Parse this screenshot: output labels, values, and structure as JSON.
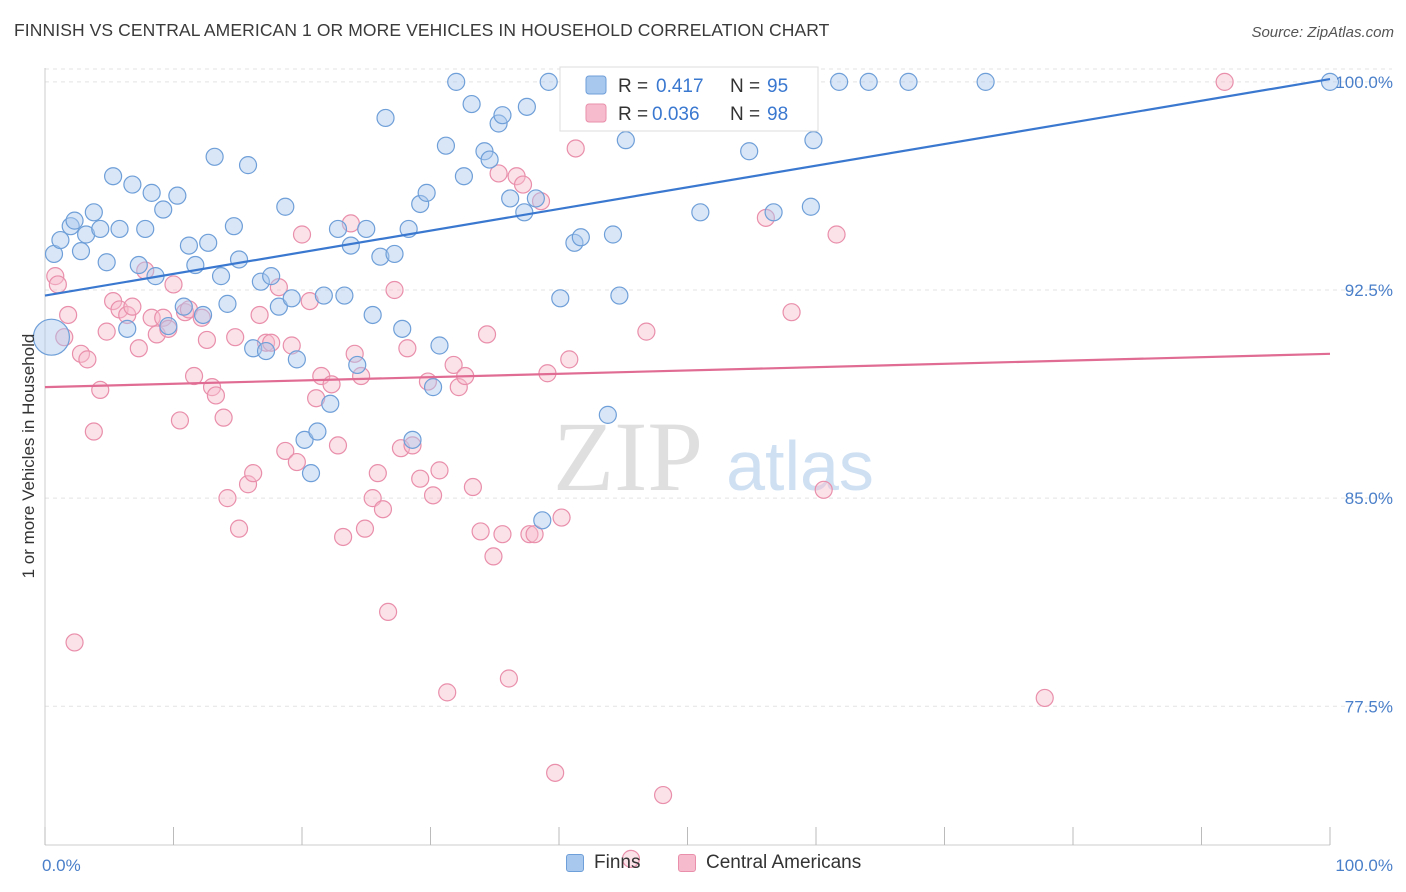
{
  "title": "FINNISH VS CENTRAL AMERICAN 1 OR MORE VEHICLES IN HOUSEHOLD CORRELATION CHART",
  "source": "Source: ZipAtlas.com",
  "watermark": {
    "zip": "ZIP",
    "atlas": "atlas"
  },
  "colors": {
    "finns_fill": "#a9c8ee",
    "finns_stroke": "#6f9fd8",
    "finns_line": "#3a78d0",
    "ca_fill": "#f6bccd",
    "ca_stroke": "#e98fab",
    "ca_line": "#e06b93",
    "tick_label": "#4a7fc9",
    "grid": "#e3e3e3"
  },
  "legend": {
    "finns": {
      "r_label": "R =",
      "r_value": "0.417",
      "n_label": "N =",
      "n_value": "95"
    },
    "ca": {
      "r_label": "R =",
      "r_value": "0.036",
      "n_label": "N =",
      "n_value": "98"
    }
  },
  "bottom_legend": {
    "finns": "Finns",
    "ca": "Central Americans"
  },
  "chart_data": {
    "type": "scatter",
    "title": "FINNISH VS CENTRAL AMERICAN 1 OR MORE VEHICLES IN HOUSEHOLD CORRELATION CHART",
    "xlabel": "",
    "ylabel": "1 or more Vehicles in Household",
    "xlim": [
      0,
      100
    ],
    "ylim": [
      72.5,
      100.5
    ],
    "x_tick_labels": [
      "0.0%",
      "100.0%"
    ],
    "y_ticks": [
      77.5,
      85.0,
      92.5,
      100.0
    ],
    "y_tick_labels": [
      "77.5%",
      "85.0%",
      "92.5%",
      "100.0%"
    ],
    "grid": true,
    "series": [
      {
        "name": "Finns",
        "trend": {
          "x": [
            0,
            100
          ],
          "y": [
            92.3,
            100.1
          ]
        },
        "points": [
          [
            0.5,
            90.8
          ],
          [
            0.7,
            93.8
          ],
          [
            1.2,
            94.3
          ],
          [
            2.0,
            94.8
          ],
          [
            2.3,
            95.0
          ],
          [
            2.8,
            93.9
          ],
          [
            3.2,
            94.5
          ],
          [
            3.8,
            95.3
          ],
          [
            4.3,
            94.7
          ],
          [
            4.8,
            93.5
          ],
          [
            5.3,
            96.6
          ],
          [
            5.8,
            94.7
          ],
          [
            6.4,
            91.1
          ],
          [
            6.8,
            96.3
          ],
          [
            7.3,
            93.4
          ],
          [
            7.8,
            94.7
          ],
          [
            8.3,
            96.0
          ],
          [
            8.6,
            93.0
          ],
          [
            9.2,
            95.4
          ],
          [
            9.6,
            91.2
          ],
          [
            10.3,
            95.9
          ],
          [
            10.8,
            91.9
          ],
          [
            11.2,
            94.1
          ],
          [
            11.7,
            93.4
          ],
          [
            12.3,
            91.6
          ],
          [
            12.7,
            94.2
          ],
          [
            13.2,
            97.3
          ],
          [
            13.7,
            93.0
          ],
          [
            14.2,
            92.0
          ],
          [
            14.7,
            94.8
          ],
          [
            15.1,
            93.6
          ],
          [
            15.8,
            97.0
          ],
          [
            16.2,
            90.4
          ],
          [
            16.8,
            92.8
          ],
          [
            17.2,
            90.3
          ],
          [
            17.6,
            93.0
          ],
          [
            18.2,
            91.9
          ],
          [
            18.7,
            95.5
          ],
          [
            19.2,
            92.2
          ],
          [
            19.6,
            90.0
          ],
          [
            20.2,
            87.1
          ],
          [
            20.7,
            85.9
          ],
          [
            21.2,
            87.4
          ],
          [
            21.7,
            92.3
          ],
          [
            22.2,
            88.4
          ],
          [
            22.8,
            94.7
          ],
          [
            23.3,
            92.3
          ],
          [
            23.8,
            94.1
          ],
          [
            24.3,
            89.8
          ],
          [
            25.0,
            94.7
          ],
          [
            25.5,
            91.6
          ],
          [
            26.1,
            93.7
          ],
          [
            26.5,
            98.7
          ],
          [
            27.2,
            93.8
          ],
          [
            27.8,
            91.1
          ],
          [
            28.3,
            94.7
          ],
          [
            28.6,
            87.1
          ],
          [
            29.2,
            95.6
          ],
          [
            29.7,
            96.0
          ],
          [
            30.2,
            89.0
          ],
          [
            30.7,
            90.5
          ],
          [
            31.2,
            97.7
          ],
          [
            32.0,
            100.0
          ],
          [
            32.6,
            96.6
          ],
          [
            33.2,
            99.2
          ],
          [
            34.2,
            97.5
          ],
          [
            34.6,
            97.2
          ],
          [
            35.3,
            98.5
          ],
          [
            35.6,
            98.8
          ],
          [
            36.2,
            95.8
          ],
          [
            37.3,
            95.3
          ],
          [
            37.5,
            99.1
          ],
          [
            38.2,
            95.8
          ],
          [
            38.7,
            84.2
          ],
          [
            39.2,
            100.0
          ],
          [
            40.1,
            92.2
          ],
          [
            41.2,
            94.2
          ],
          [
            41.7,
            94.4
          ],
          [
            42.8,
            99.6
          ],
          [
            43.8,
            88.0
          ],
          [
            44.2,
            94.5
          ],
          [
            44.7,
            92.3
          ],
          [
            45.2,
            97.9
          ],
          [
            50.2,
            100.0
          ],
          [
            51.0,
            95.3
          ],
          [
            54.8,
            97.5
          ],
          [
            56.7,
            95.3
          ],
          [
            58.7,
            100.0
          ],
          [
            59.6,
            95.5
          ],
          [
            59.8,
            97.9
          ],
          [
            61.8,
            100.0
          ],
          [
            64.1,
            100.0
          ],
          [
            67.2,
            100.0
          ],
          [
            73.2,
            100.0
          ],
          [
            100.0,
            100.0
          ]
        ]
      },
      {
        "name": "Central Americans",
        "trend": {
          "x": [
            0,
            100
          ],
          "y": [
            89.0,
            90.2
          ]
        },
        "points": [
          [
            0.8,
            93.0
          ],
          [
            1.0,
            92.7
          ],
          [
            1.5,
            90.8
          ],
          [
            1.8,
            91.6
          ],
          [
            2.3,
            79.8
          ],
          [
            2.8,
            90.2
          ],
          [
            3.3,
            90.0
          ],
          [
            3.8,
            87.4
          ],
          [
            4.3,
            88.9
          ],
          [
            4.8,
            91.0
          ],
          [
            5.3,
            92.1
          ],
          [
            5.8,
            91.8
          ],
          [
            6.4,
            91.6
          ],
          [
            6.8,
            91.9
          ],
          [
            7.3,
            90.4
          ],
          [
            7.8,
            93.2
          ],
          [
            8.3,
            91.5
          ],
          [
            8.7,
            90.9
          ],
          [
            9.2,
            91.5
          ],
          [
            9.6,
            91.1
          ],
          [
            10.0,
            92.7
          ],
          [
            10.5,
            87.8
          ],
          [
            10.9,
            91.7
          ],
          [
            11.2,
            91.8
          ],
          [
            11.6,
            89.4
          ],
          [
            12.2,
            91.5
          ],
          [
            12.6,
            90.7
          ],
          [
            13.0,
            89.0
          ],
          [
            13.3,
            88.7
          ],
          [
            13.9,
            87.9
          ],
          [
            14.2,
            85.0
          ],
          [
            14.8,
            90.8
          ],
          [
            15.1,
            83.9
          ],
          [
            15.8,
            85.5
          ],
          [
            16.2,
            85.9
          ],
          [
            16.7,
            91.6
          ],
          [
            17.2,
            90.6
          ],
          [
            17.6,
            90.6
          ],
          [
            18.2,
            92.6
          ],
          [
            18.7,
            86.7
          ],
          [
            19.2,
            90.5
          ],
          [
            19.6,
            86.3
          ],
          [
            20.0,
            94.5
          ],
          [
            20.6,
            92.1
          ],
          [
            21.1,
            88.6
          ],
          [
            21.5,
            89.4
          ],
          [
            22.3,
            89.1
          ],
          [
            22.8,
            86.9
          ],
          [
            23.2,
            83.6
          ],
          [
            23.8,
            94.9
          ],
          [
            24.1,
            90.2
          ],
          [
            24.6,
            89.4
          ],
          [
            24.9,
            83.9
          ],
          [
            25.5,
            85.0
          ],
          [
            25.9,
            85.9
          ],
          [
            26.3,
            84.6
          ],
          [
            26.7,
            80.9
          ],
          [
            27.2,
            92.5
          ],
          [
            27.7,
            86.8
          ],
          [
            28.2,
            90.4
          ],
          [
            28.6,
            86.9
          ],
          [
            29.2,
            85.7
          ],
          [
            29.8,
            89.2
          ],
          [
            30.2,
            85.1
          ],
          [
            30.7,
            86.0
          ],
          [
            31.3,
            78.0
          ],
          [
            31.8,
            89.8
          ],
          [
            32.2,
            89.0
          ],
          [
            32.7,
            89.4
          ],
          [
            33.3,
            85.4
          ],
          [
            33.9,
            83.8
          ],
          [
            34.4,
            90.9
          ],
          [
            34.9,
            82.9
          ],
          [
            35.3,
            96.7
          ],
          [
            35.6,
            83.7
          ],
          [
            36.1,
            78.5
          ],
          [
            36.7,
            96.6
          ],
          [
            37.2,
            96.3
          ],
          [
            37.7,
            83.7
          ],
          [
            38.1,
            83.7
          ],
          [
            38.6,
            95.7
          ],
          [
            39.1,
            89.5
          ],
          [
            39.7,
            75.1
          ],
          [
            40.2,
            84.3
          ],
          [
            40.8,
            90.0
          ],
          [
            41.3,
            97.6
          ],
          [
            43.5,
            100.0
          ],
          [
            45.6,
            72.0
          ],
          [
            46.3,
            100.0
          ],
          [
            46.8,
            91.0
          ],
          [
            48.1,
            74.3
          ],
          [
            54.6,
            100.0
          ],
          [
            56.1,
            95.1
          ],
          [
            58.1,
            91.7
          ],
          [
            60.6,
            85.3
          ],
          [
            61.6,
            94.5
          ],
          [
            77.8,
            77.8
          ],
          [
            91.8,
            100.0
          ]
        ]
      }
    ]
  }
}
